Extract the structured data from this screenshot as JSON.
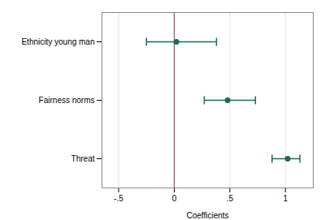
{
  "chart_data": {
    "type": "dot",
    "xlabel": "Coefficients",
    "categories": [
      "Ethnicity young man",
      "Fairness norms",
      "Threat"
    ],
    "values": [
      0.02,
      0.48,
      1.02
    ],
    "ci_lower": [
      -0.25,
      0.27,
      0.88
    ],
    "ci_upper": [
      0.38,
      0.73,
      1.13
    ],
    "color": "#1a6b5a",
    "vline": {
      "value": 0,
      "color": "#b05555"
    },
    "xlim": [
      -0.65,
      1.25
    ],
    "xticks": [
      {
        "value": -0.5,
        "label": "-.5"
      },
      0,
      {
        "value": 0.5,
        "label": ".5"
      },
      1
    ],
    "grid": true
  }
}
